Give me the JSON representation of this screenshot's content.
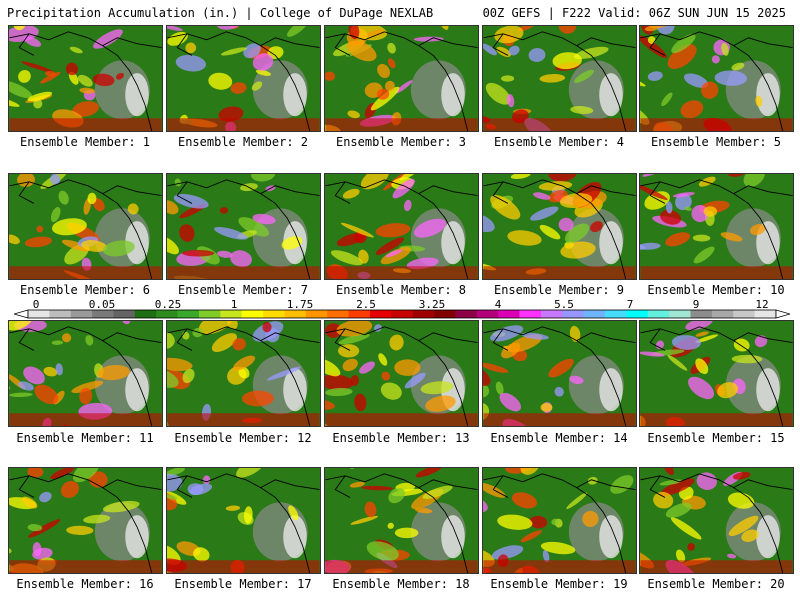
{
  "header": {
    "left": "Precipitation Accumulation (in.) | College of DuPage NEXLAB",
    "right": "00Z GEFS | F222 Valid: 06Z SUN JUN 15 2025"
  },
  "members": [
    "Ensemble Member: 1",
    "Ensemble Member: 2",
    "Ensemble Member: 3",
    "Ensemble Member: 4",
    "Ensemble Member: 5",
    "Ensemble Member: 6",
    "Ensemble Member: 7",
    "Ensemble Member: 8",
    "Ensemble Member: 9",
    "Ensemble Member: 10",
    "Ensemble Member: 11",
    "Ensemble Member: 12",
    "Ensemble Member: 13",
    "Ensemble Member: 14",
    "Ensemble Member: 15",
    "Ensemble Member: 16",
    "Ensemble Member: 17",
    "Ensemble Member: 18",
    "Ensemble Member: 19",
    "Ensemble Member: 20"
  ],
  "colorbar": {
    "ticks": [
      "0",
      "0.05",
      "0.25",
      "1",
      "1.75",
      "2.5",
      "3.25",
      "4",
      "5.5",
      "7",
      "9",
      "12"
    ],
    "colors": [
      "#e6e6e6",
      "#bdbdbd",
      "#9a9a9a",
      "#7a7a7a",
      "#646464",
      "#1e6e14",
      "#2e8b1e",
      "#3aa82a",
      "#7ecb2a",
      "#c8e61e",
      "#ffff00",
      "#ffdc00",
      "#ffbe00",
      "#ff9600",
      "#ff6e00",
      "#ff3c00",
      "#e60000",
      "#c80000",
      "#a00000",
      "#800000",
      "#8c0046",
      "#b4007a",
      "#dc00b4",
      "#ff32ff",
      "#c878ff",
      "#9696ff",
      "#6eb4ff",
      "#46dcff",
      "#00ffff",
      "#64f0dc",
      "#a0e6d2",
      "#8c8c8c",
      "#a8a8a8",
      "#c8c8c8",
      "#e6e6e6"
    ]
  }
}
